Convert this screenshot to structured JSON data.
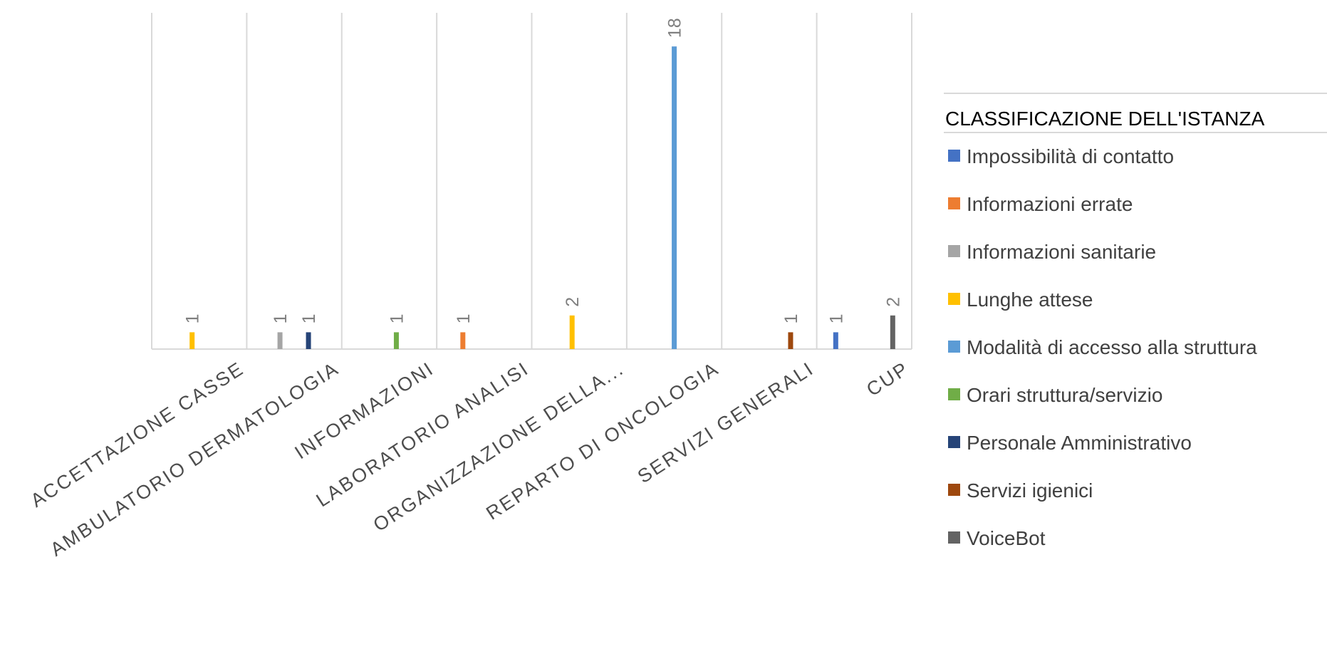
{
  "chart_data": {
    "type": "bar",
    "title": "",
    "xlabel": "",
    "ylabel": "",
    "ylim": [
      0,
      20
    ],
    "grid": "vertical category separators",
    "legend_position": "right",
    "categories": [
      "ACCETTAZIONE CASSE",
      "AMBULATORIO DERMATOLOGIA",
      "INFORMAZIONI",
      "LABORATORIO ANALISI",
      "ORGANIZZAZIONE DELLA...",
      "REPARTO DI ONCOLOGIA",
      "SERVIZI GENERALI",
      "CUP"
    ],
    "legend_title": "CLASSIFICAZIONE DELL'ISTANZA",
    "series": [
      {
        "name": "Impossibilità di contatto",
        "color": "#4472C4",
        "values": [
          null,
          null,
          null,
          null,
          null,
          null,
          null,
          1
        ]
      },
      {
        "name": "Informazioni errate",
        "color": "#ED7D31",
        "values": [
          null,
          null,
          null,
          1,
          null,
          null,
          null,
          null
        ]
      },
      {
        "name": "Informazioni sanitarie",
        "color": "#A5A5A5",
        "values": [
          null,
          1,
          null,
          null,
          null,
          null,
          null,
          null
        ]
      },
      {
        "name": "Lunghe attese",
        "color": "#FFC000",
        "values": [
          1,
          null,
          null,
          null,
          2,
          null,
          null,
          null
        ]
      },
      {
        "name": "Modalità di accesso alla struttura",
        "color": "#5B9BD5",
        "values": [
          null,
          null,
          null,
          null,
          null,
          18,
          null,
          null
        ]
      },
      {
        "name": "Orari struttura/servizio",
        "color": "#70AD47",
        "values": [
          null,
          null,
          1,
          null,
          null,
          null,
          null,
          null
        ]
      },
      {
        "name": "Personale Amministrativo",
        "color": "#264478",
        "values": [
          null,
          1,
          null,
          null,
          null,
          null,
          null,
          null
        ]
      },
      {
        "name": "Servizi igienici",
        "color": "#9E480E",
        "values": [
          null,
          null,
          null,
          null,
          null,
          null,
          1,
          null
        ]
      },
      {
        "name": "VoiceBot",
        "color": "#636363",
        "values": [
          null,
          null,
          null,
          null,
          null,
          null,
          null,
          2
        ]
      }
    ]
  }
}
